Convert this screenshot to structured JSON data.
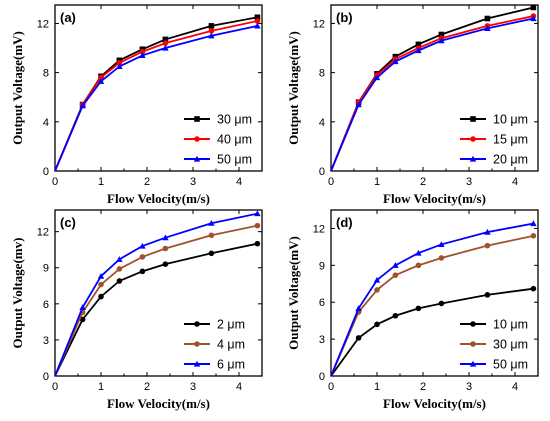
{
  "chart_data": [
    {
      "type": "line",
      "panel_label": "(a)",
      "xlabel": "Flow Velocity(m/s)",
      "ylabel": "Output Voltage(mV)",
      "xlim": [
        0,
        4.5
      ],
      "ylim": [
        0,
        13.5
      ],
      "xticks": [
        0,
        1,
        2,
        3,
        4
      ],
      "yticks": [
        0,
        4,
        8,
        12
      ],
      "legend_position": "bottom-right",
      "grid": false,
      "x": [
        0,
        0.6,
        1.0,
        1.4,
        1.9,
        2.4,
        3.4,
        4.4
      ],
      "series": [
        {
          "name": "30 μm",
          "color": "#000000",
          "marker": "square",
          "values": [
            0,
            5.4,
            7.7,
            9.0,
            9.9,
            10.7,
            11.8,
            12.5
          ]
        },
        {
          "name": "40 μm",
          "color": "#ff0000",
          "marker": "circle",
          "values": [
            0,
            5.4,
            7.6,
            8.8,
            9.7,
            10.4,
            11.4,
            12.2
          ]
        },
        {
          "name": "50 μm",
          "color": "#0000ff",
          "marker": "triangle",
          "values": [
            0,
            5.3,
            7.3,
            8.5,
            9.4,
            10.0,
            11.0,
            11.8
          ]
        }
      ]
    },
    {
      "type": "line",
      "panel_label": "(b)",
      "xlabel": "Flow Velocity(m/s)",
      "ylabel": "Output Voltage(mV)",
      "xlim": [
        0,
        4.5
      ],
      "ylim": [
        0,
        13.5
      ],
      "xticks": [
        0,
        1,
        2,
        3,
        4
      ],
      "yticks": [
        0,
        4,
        8,
        12
      ],
      "legend_position": "bottom-right",
      "grid": false,
      "x": [
        0,
        0.6,
        1.0,
        1.4,
        1.9,
        2.4,
        3.4,
        4.4
      ],
      "series": [
        {
          "name": "10 μm",
          "color": "#000000",
          "marker": "square",
          "values": [
            0,
            5.6,
            7.9,
            9.3,
            10.3,
            11.1,
            12.4,
            13.3
          ]
        },
        {
          "name": "15 μm",
          "color": "#ff0000",
          "marker": "circle",
          "values": [
            0,
            5.6,
            7.8,
            9.1,
            10.0,
            10.8,
            11.8,
            12.6
          ]
        },
        {
          "name": "20 μm",
          "color": "#0000ff",
          "marker": "triangle",
          "values": [
            0,
            5.4,
            7.6,
            8.9,
            9.8,
            10.6,
            11.6,
            12.4
          ]
        }
      ]
    },
    {
      "type": "line",
      "panel_label": "(c)",
      "xlabel": "Flow Velocity(m/s)",
      "ylabel": "Output Voltage(mv)",
      "xlim": [
        0,
        4.5
      ],
      "ylim": [
        0,
        13.8
      ],
      "xticks": [
        0,
        1,
        2,
        3,
        4
      ],
      "yticks": [
        0,
        3,
        6,
        9,
        12
      ],
      "legend_position": "bottom-right",
      "grid": false,
      "x": [
        0,
        0.6,
        1.0,
        1.4,
        1.9,
        2.4,
        3.4,
        4.4
      ],
      "series": [
        {
          "name": "2 μm",
          "color": "#000000",
          "marker": "circle",
          "values": [
            0,
            4.7,
            6.6,
            7.9,
            8.7,
            9.3,
            10.2,
            11.0
          ]
        },
        {
          "name": "4 μm",
          "color": "#a0522d",
          "marker": "circle",
          "values": [
            0,
            5.3,
            7.6,
            8.9,
            9.9,
            10.6,
            11.7,
            12.5
          ]
        },
        {
          "name": "6 μm",
          "color": "#0000ff",
          "marker": "triangle",
          "values": [
            0,
            5.7,
            8.3,
            9.7,
            10.8,
            11.5,
            12.7,
            13.5
          ]
        }
      ]
    },
    {
      "type": "line",
      "panel_label": "(d)",
      "xlabel": "Flow Velocity(m/s)",
      "ylabel": "Output Voltage(mV)",
      "xlim": [
        0,
        4.5
      ],
      "ylim": [
        0,
        13.5
      ],
      "xticks": [
        0,
        1,
        2,
        3,
        4
      ],
      "yticks": [
        0,
        3,
        6,
        9,
        12
      ],
      "legend_position": "bottom-right",
      "grid": false,
      "x": [
        0,
        0.6,
        1.0,
        1.4,
        1.9,
        2.4,
        3.4,
        4.4
      ],
      "series": [
        {
          "name": "10 μm",
          "color": "#000000",
          "marker": "circle",
          "values": [
            0,
            3.1,
            4.2,
            4.9,
            5.5,
            5.9,
            6.6,
            7.1
          ]
        },
        {
          "name": "30 μm",
          "color": "#a0522d",
          "marker": "circle",
          "values": [
            0,
            5.2,
            7.0,
            8.2,
            9.0,
            9.6,
            10.6,
            11.4
          ]
        },
        {
          "name": "50 μm",
          "color": "#0000ff",
          "marker": "triangle",
          "values": [
            0,
            5.5,
            7.8,
            9.0,
            10.0,
            10.7,
            11.7,
            12.4
          ]
        }
      ]
    }
  ]
}
